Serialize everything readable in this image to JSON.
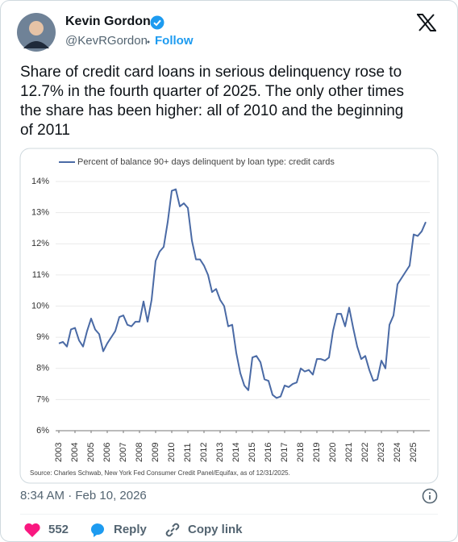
{
  "author": {
    "name": "Kevin Gordon",
    "handle": "@KevRGordon",
    "follow": "Follow"
  },
  "text": {
    "lines": [
      "Share of credit card loans in serious delinquency rose to",
      "12.7% in the fourth quarter of 2025. The only other times",
      "the share has been higher: all of 2010 and the beginning",
      "of 2011"
    ]
  },
  "chart_data": {
    "type": "line",
    "series": [
      {
        "name": "Percent of balance 90+ days delinquent by loan type: credit cards",
        "color": "#4a6aa5",
        "values": [
          8.8,
          8.85,
          8.7,
          9.25,
          9.3,
          8.9,
          8.7,
          9.2,
          9.6,
          9.25,
          9.1,
          8.55,
          8.8,
          9.0,
          9.2,
          9.65,
          9.7,
          9.4,
          9.35,
          9.5,
          9.5,
          10.15,
          9.5,
          10.2,
          11.45,
          11.75,
          11.9,
          12.7,
          13.7,
          13.75,
          13.2,
          13.3,
          13.15,
          12.1,
          11.5,
          11.5,
          11.3,
          11.0,
          10.45,
          10.55,
          10.2,
          10.0,
          9.35,
          9.4,
          8.5,
          7.85,
          7.45,
          7.3,
          8.35,
          8.4,
          8.2,
          7.65,
          7.6,
          7.15,
          7.05,
          7.1,
          7.45,
          7.4,
          7.5,
          7.55,
          8.0,
          7.9,
          7.95,
          7.8,
          8.3,
          8.3,
          8.25,
          8.35,
          9.2,
          9.75,
          9.75,
          9.35,
          9.95,
          9.3,
          8.7,
          8.3,
          8.4,
          7.95,
          7.6,
          7.65,
          8.25,
          8.0,
          9.4,
          9.7,
          10.7,
          10.9,
          11.1,
          11.3,
          12.3,
          12.25,
          12.4,
          12.7
        ]
      }
    ],
    "x": [
      2003,
      2003.25,
      2003.5,
      2003.75,
      2004,
      2004.25,
      2004.5,
      2004.75,
      2005,
      2005.25,
      2005.5,
      2005.75,
      2006,
      2006.25,
      2006.5,
      2006.75,
      2007,
      2007.25,
      2007.5,
      2007.75,
      2008,
      2008.25,
      2008.5,
      2008.75,
      2009,
      2009.25,
      2009.5,
      2009.75,
      2010,
      2010.25,
      2010.5,
      2010.75,
      2011,
      2011.25,
      2011.5,
      2011.75,
      2012,
      2012.25,
      2012.5,
      2012.75,
      2013,
      2013.25,
      2013.5,
      2013.75,
      2014,
      2014.25,
      2014.5,
      2014.75,
      2015,
      2015.25,
      2015.5,
      2015.75,
      2016,
      2016.25,
      2016.5,
      2016.75,
      2017,
      2017.25,
      2017.5,
      2017.75,
      2018,
      2018.25,
      2018.5,
      2018.75,
      2019,
      2019.25,
      2019.5,
      2019.75,
      2020,
      2020.25,
      2020.5,
      2020.75,
      2021,
      2021.25,
      2021.5,
      2021.75,
      2022,
      2022.25,
      2022.5,
      2022.75,
      2023,
      2023.25,
      2023.5,
      2023.75,
      2024,
      2024.25,
      2024.5,
      2024.75,
      2025,
      2025.25,
      2025.5,
      2025.75
    ],
    "xlim": [
      2002.8,
      2026.0
    ],
    "xticks": [
      2003,
      2004,
      2005,
      2006,
      2007,
      2008,
      2009,
      2010,
      2011,
      2012,
      2013,
      2014,
      2015,
      2016,
      2017,
      2018,
      2019,
      2020,
      2021,
      2022,
      2023,
      2024,
      2025
    ],
    "ylim": [
      6,
      14
    ],
    "yticks": [
      {
        "value": 6,
        "label": "6%"
      },
      {
        "value": 7,
        "label": "7%"
      },
      {
        "value": 8,
        "label": "8%"
      },
      {
        "value": 9,
        "label": "9%"
      },
      {
        "value": 10,
        "label": "10%"
      },
      {
        "value": 11,
        "label": "11%"
      },
      {
        "value": 12,
        "label": "12%"
      },
      {
        "value": 13,
        "label": "13%"
      },
      {
        "value": 14,
        "label": "14%"
      }
    ],
    "grid": true,
    "legend": "top-left",
    "source": "Source: Charles Schwab, New York Fed Consumer Credit Panel/Equifax, as of 12/31/2025."
  },
  "timestamp": "8:34 AM · Feb 10, 2026",
  "actions": {
    "likes": "552",
    "reply": "Reply",
    "copy": "Copy link"
  }
}
